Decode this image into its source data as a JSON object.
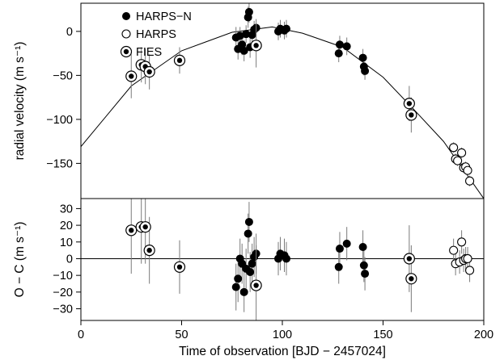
{
  "chart_data": [
    {
      "type": "scatter",
      "title": "",
      "xlabel": "",
      "ylabel": "radial velocity (m s⁻¹)",
      "xlim": [
        0,
        200
      ],
      "ylim": [
        -190,
        32
      ],
      "x_ticks": [
        "0",
        "50",
        "100",
        "150",
        "200"
      ],
      "y_ticks": [
        "0",
        "−50",
        "−100",
        "−150"
      ],
      "y_tick_values": [
        0,
        -50,
        -100,
        -150
      ],
      "legend": {
        "placement": "top-left",
        "entries": [
          "HARPS−N",
          "HARPS",
          "FIES"
        ]
      },
      "grid": false,
      "series": [
        {
          "name": "HARPS−N",
          "marker": "filled-circle",
          "points": [
            {
              "x": 77,
              "y": -7,
              "err": 12
            },
            {
              "x": 78,
              "y": -20,
              "err": 12
            },
            {
              "x": 79,
              "y": -5,
              "err": 10
            },
            {
              "x": 80,
              "y": -15,
              "err": 12
            },
            {
              "x": 81,
              "y": -22,
              "err": 12
            },
            {
              "x": 82,
              "y": -3,
              "err": 10
            },
            {
              "x": 83,
              "y": 16,
              "err": 12
            },
            {
              "x": 83.5,
              "y": 22,
              "err": 12
            },
            {
              "x": 84,
              "y": -18,
              "err": 12
            },
            {
              "x": 85,
              "y": -4,
              "err": 10
            },
            {
              "x": 86,
              "y": 2,
              "err": 10
            },
            {
              "x": 87,
              "y": 4,
              "err": 10
            },
            {
              "x": 98,
              "y": 0,
              "err": 10
            },
            {
              "x": 99,
              "y": 3,
              "err": 10
            },
            {
              "x": 101,
              "y": 1,
              "err": 10
            },
            {
              "x": 102,
              "y": 3,
              "err": 10
            },
            {
              "x": 128,
              "y": -25,
              "err": 10
            },
            {
              "x": 128.5,
              "y": -15,
              "err": 10
            },
            {
              "x": 132,
              "y": -17,
              "err": 10
            },
            {
              "x": 140,
              "y": -30,
              "err": 10
            },
            {
              "x": 140.5,
              "y": -40,
              "err": 10
            },
            {
              "x": 141,
              "y": -45,
              "err": 10
            }
          ]
        },
        {
          "name": "HARPS",
          "marker": "open-circle",
          "points": [
            {
              "x": 185,
              "y": -132,
              "err": 6
            },
            {
              "x": 186,
              "y": -145,
              "err": 6
            },
            {
              "x": 187,
              "y": -147,
              "err": 6
            },
            {
              "x": 189,
              "y": -138,
              "err": 6
            },
            {
              "x": 190,
              "y": -155,
              "err": 6
            },
            {
              "x": 191,
              "y": -154,
              "err": 6
            },
            {
              "x": 192,
              "y": -158,
              "err": 6
            },
            {
              "x": 193,
              "y": -170,
              "err": 6
            }
          ]
        },
        {
          "name": "FIES",
          "marker": "dot-in-circle",
          "points": [
            {
              "x": 25,
              "y": -51,
              "err": 25
            },
            {
              "x": 30,
              "y": -38,
              "err": 20
            },
            {
              "x": 32,
              "y": -40,
              "err": 20
            },
            {
              "x": 34,
              "y": -46,
              "err": 20
            },
            {
              "x": 49,
              "y": -33,
              "err": 15
            },
            {
              "x": 87,
              "y": -16,
              "err": 25
            },
            {
              "x": 163,
              "y": -82,
              "err": 20
            },
            {
              "x": 164,
              "y": -95,
              "err": 20
            }
          ]
        }
      ],
      "model_curve": {
        "type": "line",
        "points": [
          {
            "x": 0,
            "y": -131
          },
          {
            "x": 25,
            "y": -62
          },
          {
            "x": 50,
            "y": -22
          },
          {
            "x": 75,
            "y": -1
          },
          {
            "x": 95,
            "y": 5
          },
          {
            "x": 110,
            "y": -2
          },
          {
            "x": 130,
            "y": -18
          },
          {
            "x": 150,
            "y": -52
          },
          {
            "x": 165,
            "y": -88
          },
          {
            "x": 180,
            "y": -125
          },
          {
            "x": 200,
            "y": -190
          }
        ]
      }
    },
    {
      "type": "scatter",
      "title": "",
      "xlabel": "Time of observation [BJD − 2457024]",
      "ylabel": "O − C  (m s⁻¹)",
      "xlim": [
        0,
        200
      ],
      "ylim": [
        -37,
        36
      ],
      "x_ticks": [
        "0",
        "50",
        "100",
        "150",
        "200"
      ],
      "x_tick_values": [
        0,
        50,
        100,
        150,
        200
      ],
      "y_ticks": [
        "30",
        "20",
        "10",
        "0",
        "−10",
        "−20",
        "−30"
      ],
      "y_tick_values": [
        30,
        20,
        10,
        0,
        -10,
        -20,
        -30
      ],
      "reference_line": 0,
      "grid": false,
      "series": [
        {
          "name": "HARPS−N",
          "marker": "filled-circle",
          "points": [
            {
              "x": 77,
              "y": -17,
              "err": 14
            },
            {
              "x": 78,
              "y": -12,
              "err": 14
            },
            {
              "x": 79,
              "y": 0,
              "err": 12
            },
            {
              "x": 80,
              "y": -3,
              "err": 12
            },
            {
              "x": 81,
              "y": -20,
              "err": 12
            },
            {
              "x": 82,
              "y": -6,
              "err": 12
            },
            {
              "x": 83,
              "y": 15,
              "err": 12
            },
            {
              "x": 83.5,
              "y": 22,
              "err": 12
            },
            {
              "x": 84,
              "y": -8,
              "err": 12
            },
            {
              "x": 85,
              "y": -3,
              "err": 12
            },
            {
              "x": 86,
              "y": 1,
              "err": 12
            },
            {
              "x": 87,
              "y": 3,
              "err": 12
            },
            {
              "x": 98,
              "y": 0,
              "err": 10
            },
            {
              "x": 99,
              "y": 3,
              "err": 10
            },
            {
              "x": 101,
              "y": 2,
              "err": 10
            },
            {
              "x": 102,
              "y": 0,
              "err": 10
            },
            {
              "x": 128,
              "y": -5,
              "err": 10
            },
            {
              "x": 128.5,
              "y": 6,
              "err": 10
            },
            {
              "x": 132,
              "y": 9,
              "err": 10
            },
            {
              "x": 140,
              "y": 7,
              "err": 10
            },
            {
              "x": 140.5,
              "y": -4,
              "err": 10
            },
            {
              "x": 141,
              "y": -9,
              "err": 10
            }
          ]
        },
        {
          "name": "HARPS",
          "marker": "open-circle",
          "points": [
            {
              "x": 185,
              "y": 5,
              "err": 7
            },
            {
              "x": 186,
              "y": -3,
              "err": 7
            },
            {
              "x": 188,
              "y": -2,
              "err": 7
            },
            {
              "x": 189,
              "y": 10,
              "err": 7
            },
            {
              "x": 190,
              "y": -1,
              "err": 7
            },
            {
              "x": 191,
              "y": 0,
              "err": 7
            },
            {
              "x": 192,
              "y": 0,
              "err": 7
            },
            {
              "x": 193,
              "y": -7,
              "err": 7
            }
          ]
        },
        {
          "name": "FIES",
          "marker": "dot-in-circle",
          "points": [
            {
              "x": 25,
              "y": 17,
              "err": 26
            },
            {
              "x": 30,
              "y": 19,
              "err": 22
            },
            {
              "x": 32,
              "y": 19,
              "err": 22
            },
            {
              "x": 34,
              "y": 5,
              "err": 20
            },
            {
              "x": 49,
              "y": -5,
              "err": 16
            },
            {
              "x": 87,
              "y": -16,
              "err": 24
            },
            {
              "x": 163,
              "y": 0,
              "err": 20
            },
            {
              "x": 164,
              "y": -12,
              "err": 20
            }
          ]
        }
      ]
    }
  ]
}
